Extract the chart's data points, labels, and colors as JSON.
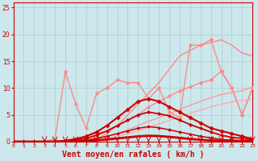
{
  "background_color": "#cce8ec",
  "grid_color": "#aacccc",
  "xlabel": "Vent moyen/en rafales ( km/h )",
  "xlabel_color": "#cc0000",
  "xlabel_fontsize": 7,
  "xticks": [
    0,
    1,
    2,
    3,
    4,
    5,
    6,
    7,
    8,
    9,
    10,
    11,
    12,
    13,
    14,
    15,
    16,
    17,
    18,
    19,
    20,
    21,
    22,
    23
  ],
  "yticks": [
    0,
    5,
    10,
    15,
    20,
    25
  ],
  "xlim": [
    0,
    23
  ],
  "ylim": [
    0,
    26
  ],
  "lines": [
    {
      "x": [
        0,
        1,
        2,
        3,
        4,
        5,
        6,
        7,
        8,
        9,
        10,
        11,
        12,
        13,
        14,
        15,
        16,
        17,
        18,
        19,
        20,
        21,
        22,
        23
      ],
      "y": [
        0,
        0,
        0,
        0,
        0,
        0,
        0,
        0,
        0.5,
        1.5,
        3,
        5,
        7,
        9,
        11,
        13.5,
        16,
        17,
        18,
        18.5,
        19,
        18,
        16.5,
        16
      ],
      "color": "#ff8888",
      "lw": 1.0,
      "marker": null
    },
    {
      "x": [
        0,
        1,
        2,
        3,
        4,
        5,
        6,
        7,
        8,
        9,
        10,
        11,
        12,
        13,
        14,
        15,
        16,
        17,
        18,
        19,
        20,
        21,
        22,
        23
      ],
      "y": [
        0,
        0,
        0,
        0,
        0.5,
        13,
        7,
        2.5,
        9,
        10,
        11.5,
        11,
        11,
        8,
        10,
        5.5,
        4.5,
        18,
        18,
        19,
        13,
        10,
        5,
        10
      ],
      "color": "#ff8888",
      "lw": 1.0,
      "marker": "o",
      "ms": 2.5
    },
    {
      "x": [
        0,
        1,
        2,
        3,
        4,
        5,
        6,
        7,
        8,
        9,
        10,
        11,
        12,
        13,
        14,
        15,
        16,
        17,
        18,
        19,
        20,
        21,
        22,
        23
      ],
      "y": [
        0,
        0,
        0,
        0,
        0,
        0,
        0.5,
        1,
        1.5,
        2,
        3,
        4,
        5,
        6.5,
        7.5,
        8.5,
        9.5,
        10.2,
        11,
        11.5,
        13.2,
        10,
        5,
        10
      ],
      "color": "#ff8888",
      "lw": 1.0,
      "marker": "o",
      "ms": 2.5
    },
    {
      "x": [
        0,
        1,
        2,
        3,
        4,
        5,
        6,
        7,
        8,
        9,
        10,
        11,
        12,
        13,
        14,
        15,
        16,
        17,
        18,
        19,
        20,
        21,
        22,
        23
      ],
      "y": [
        0,
        0,
        0,
        0,
        0,
        0,
        0,
        0.2,
        0.5,
        1,
        1.5,
        2.2,
        3,
        3.8,
        4.5,
        5.2,
        6,
        6.8,
        7.5,
        8.2,
        8.8,
        9.2,
        9.5,
        10.2
      ],
      "color": "#ff9999",
      "lw": 1.0,
      "marker": null
    },
    {
      "x": [
        0,
        1,
        2,
        3,
        4,
        5,
        6,
        7,
        8,
        9,
        10,
        11,
        12,
        13,
        14,
        15,
        16,
        17,
        18,
        19,
        20,
        21,
        22,
        23
      ],
      "y": [
        0,
        0,
        0,
        0,
        0,
        0,
        0,
        0.1,
        0.3,
        0.6,
        1,
        1.5,
        2,
        2.7,
        3.3,
        4,
        4.7,
        5.3,
        5.9,
        6.5,
        7,
        7.4,
        7.7,
        7.9
      ],
      "color": "#ffaaaa",
      "lw": 1.0,
      "marker": null
    },
    {
      "x": [
        0,
        1,
        2,
        3,
        4,
        5,
        6,
        7,
        8,
        9,
        10,
        11,
        12,
        13,
        14,
        15,
        16,
        17,
        18,
        19,
        20,
        21,
        22,
        23
      ],
      "y": [
        0,
        0,
        0,
        0,
        0,
        0.2,
        0.5,
        1,
        1.8,
        3,
        4.5,
        6,
        7.5,
        8,
        7.5,
        6.5,
        5.5,
        4.5,
        3.5,
        2.5,
        2,
        1.5,
        1,
        0.5
      ],
      "color": "#cc0000",
      "lw": 1.5,
      "marker": "D",
      "ms": 2.5
    },
    {
      "x": [
        0,
        1,
        2,
        3,
        4,
        5,
        6,
        7,
        8,
        9,
        10,
        11,
        12,
        13,
        14,
        15,
        16,
        17,
        18,
        19,
        20,
        21,
        22,
        23
      ],
      "y": [
        0,
        0,
        0,
        0,
        0,
        0.1,
        0.3,
        0.6,
        1.2,
        2,
        3,
        4,
        5,
        5.5,
        5.2,
        4.8,
        4,
        3.2,
        2.5,
        1.8,
        1.2,
        0.8,
        0.6,
        0.3
      ],
      "color": "#cc0000",
      "lw": 1.3,
      "marker": "D",
      "ms": 2.0
    },
    {
      "x": [
        0,
        1,
        2,
        3,
        4,
        5,
        6,
        7,
        8,
        9,
        10,
        11,
        12,
        13,
        14,
        15,
        16,
        17,
        18,
        19,
        20,
        21,
        22,
        23
      ],
      "y": [
        0,
        0,
        0,
        0,
        0,
        0.05,
        0.15,
        0.3,
        0.6,
        1,
        1.5,
        2,
        2.5,
        2.8,
        2.6,
        2.2,
        1.8,
        1.4,
        1,
        0.7,
        0.4,
        0.3,
        0.2,
        0.1
      ],
      "color": "#cc0000",
      "lw": 1.1,
      "marker": "D",
      "ms": 1.8
    },
    {
      "x": [
        0,
        1,
        2,
        3,
        4,
        5,
        6,
        7,
        8,
        9,
        10,
        11,
        12,
        13,
        14,
        15,
        16,
        17,
        18,
        19,
        20,
        21,
        22,
        23
      ],
      "y": [
        0,
        0,
        0,
        0,
        0,
        0.02,
        0.05,
        0.12,
        0.25,
        0.4,
        0.6,
        0.8,
        1,
        1.1,
        1.05,
        0.9,
        0.7,
        0.5,
        0.35,
        0.22,
        0.14,
        0.08,
        0.05,
        0.03
      ],
      "color": "#cc0000",
      "lw": 2.0,
      "marker": null
    }
  ],
  "arrows_x": [
    3,
    4,
    5,
    6,
    7,
    8,
    9,
    10,
    11,
    12,
    13,
    14,
    15,
    16,
    17,
    18,
    19,
    20,
    21,
    22,
    23
  ]
}
